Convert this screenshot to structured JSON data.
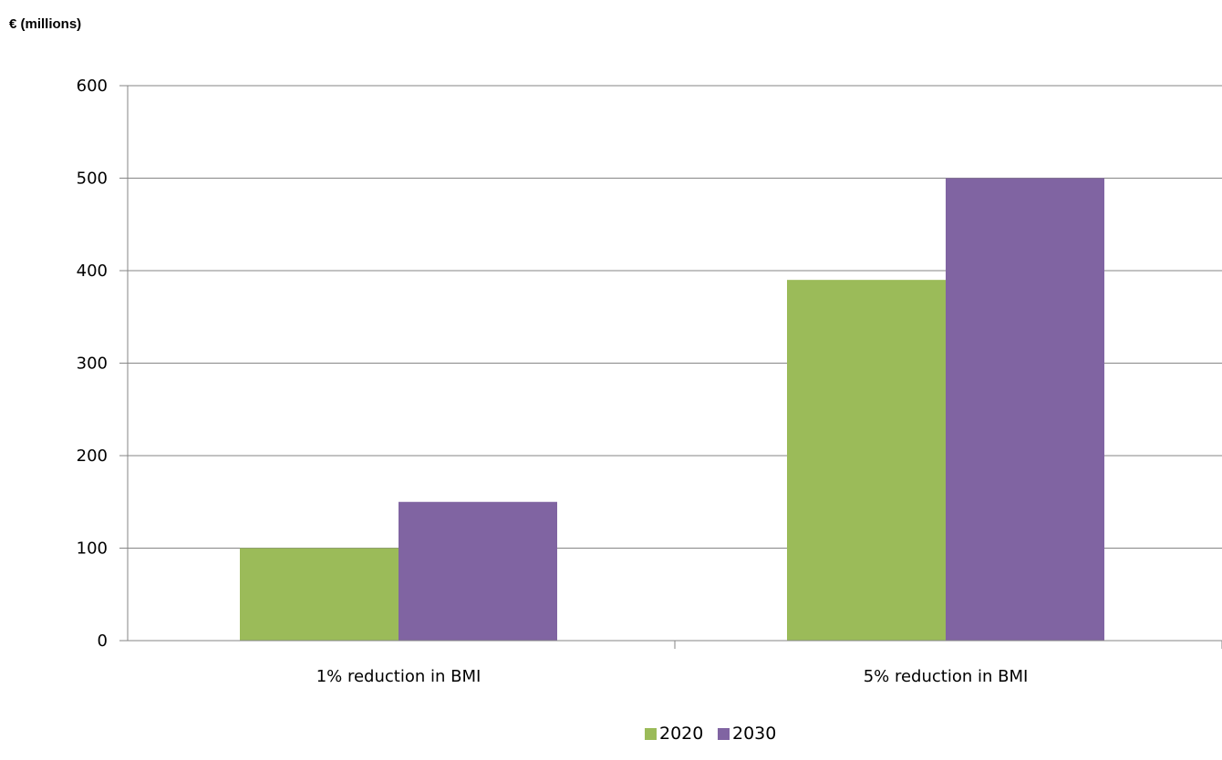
{
  "chart_data": {
    "type": "bar",
    "title": "",
    "ylabel": "€ (millions)",
    "xlabel": "",
    "categories": [
      "1% reduction in BMI",
      "5% reduction in BMI"
    ],
    "series": [
      {
        "name": "2020",
        "values": [
          100,
          390
        ],
        "color": "#9BBB59"
      },
      {
        "name": "2030",
        "values": [
          150,
          500
        ],
        "color": "#8064A2"
      }
    ],
    "ylim": [
      0,
      600
    ],
    "yticks": [
      0,
      100,
      200,
      300,
      400,
      500,
      600
    ],
    "grid": true,
    "legend_position": "bottom"
  }
}
